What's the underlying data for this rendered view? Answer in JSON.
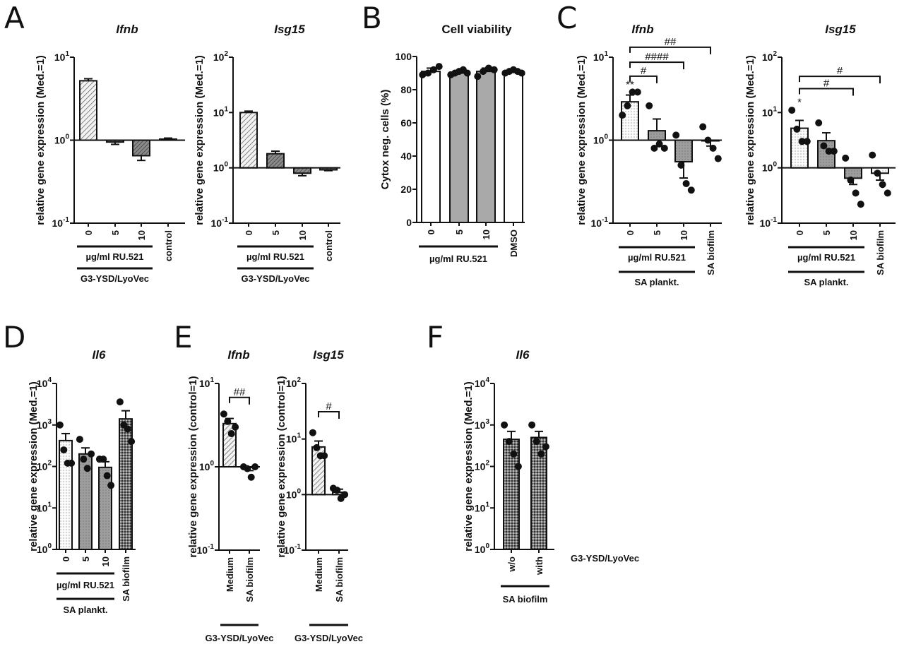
{
  "chart_data": [
    {
      "panel": "A",
      "type": "bar",
      "title": "Ifnb",
      "ylabel": "relative gene expression (Med.=1)",
      "yscale": "log",
      "ylim": [
        0.1,
        10
      ],
      "yticks": [
        {
          "value": 0.1,
          "b": "10",
          "e": "-1"
        },
        {
          "value": 1,
          "b": "10",
          "e": "0"
        },
        {
          "value": 10,
          "b": "10",
          "e": "1"
        }
      ],
      "bar_origin": 1,
      "categories": [
        "0",
        "5",
        "10",
        "control"
      ],
      "fills": [
        "hatch",
        "hatch-dark",
        "hatch-dark",
        "hatch-dark"
      ],
      "bars": [
        {
          "mean": 5.2,
          "sem": 0.3
        },
        {
          "mean": 0.95,
          "sem": 0.06
        },
        {
          "mean": 0.65,
          "sem": 0.08
        },
        {
          "mean": 1.03,
          "sem": 0.03
        }
      ],
      "groups": [
        {
          "from": 0,
          "to": 2,
          "text": "µg/ml RU.521",
          "level": 0
        },
        {
          "from": 0,
          "to": 2,
          "text": "G3-YSD/LyoVec",
          "level": 1
        }
      ],
      "brackets": [],
      "annotations": []
    },
    {
      "panel": "",
      "type": "bar",
      "title": "Isg15",
      "ylabel": "relative gene expression (Med.=1)",
      "yscale": "log",
      "ylim": [
        0.1,
        100
      ],
      "yticks": [
        {
          "value": 0.1,
          "b": "10",
          "e": "-1"
        },
        {
          "value": 1,
          "b": "10",
          "e": "0"
        },
        {
          "value": 10,
          "b": "10",
          "e": "1"
        },
        {
          "value": 100,
          "b": "10",
          "e": "2"
        }
      ],
      "bar_origin": 1,
      "categories": [
        "0",
        "5",
        "10",
        "control"
      ],
      "fills": [
        "hatch",
        "hatch-dark",
        "hatch-dark",
        "hatch-dark"
      ],
      "bars": [
        {
          "mean": 10,
          "sem": 0.6
        },
        {
          "mean": 1.8,
          "sem": 0.2
        },
        {
          "mean": 0.8,
          "sem": 0.08
        },
        {
          "mean": 0.92,
          "sem": 0.03
        }
      ],
      "groups": [
        {
          "from": 0,
          "to": 2,
          "text": "µg/ml RU.521",
          "level": 0
        },
        {
          "from": 0,
          "to": 2,
          "text": "G3-YSD/LyoVec",
          "level": 1
        }
      ],
      "brackets": [],
      "annotations": []
    },
    {
      "panel": "B",
      "type": "bar",
      "title": "Cell viability",
      "ylabel": "Cytox neg. cells (%)",
      "yscale": "linear",
      "ylim": [
        0,
        100
      ],
      "yticks": [
        {
          "value": 0,
          "b": "0"
        },
        {
          "value": 20,
          "b": "20"
        },
        {
          "value": 40,
          "b": "40"
        },
        {
          "value": 60,
          "b": "60"
        },
        {
          "value": 80,
          "b": "80"
        },
        {
          "value": 100,
          "b": "100"
        }
      ],
      "bar_origin": 0,
      "categories": [
        "0",
        "5",
        "10",
        "DMSO"
      ],
      "fills": [
        "white",
        "gray",
        "gray",
        "white"
      ],
      "bars": [
        {
          "mean": 91,
          "sem": 2,
          "points": [
            89,
            90,
            92,
            94
          ]
        },
        {
          "mean": 90,
          "sem": 1,
          "points": [
            89,
            90,
            91,
            92,
            90
          ]
        },
        {
          "mean": 91,
          "sem": 2,
          "points": [
            88,
            91,
            93,
            92
          ]
        },
        {
          "mean": 91,
          "sem": 1,
          "points": [
            90,
            91,
            92,
            91,
            90
          ]
        }
      ],
      "groups": [
        {
          "from": 0,
          "to": 2,
          "text": "µg/ml RU.521",
          "level": 0
        }
      ],
      "brackets": [],
      "annotations": []
    },
    {
      "panel": "C",
      "type": "bar",
      "title": "Ifnb",
      "ylabel": "relative gene expression (Med.=1)",
      "yscale": "log",
      "ylim": [
        0.1,
        10
      ],
      "yticks": [
        {
          "value": 0.1,
          "b": "10",
          "e": "-1"
        },
        {
          "value": 1,
          "b": "10",
          "e": "0"
        },
        {
          "value": 10,
          "b": "10",
          "e": "1"
        }
      ],
      "bar_origin": 1,
      "categories": [
        "0",
        "5",
        "10",
        "SA biofilm"
      ],
      "fills": [
        "dots",
        "gray-dots",
        "gray-dots",
        "white"
      ],
      "bars": [
        {
          "mean": 2.9,
          "sem": 0.6,
          "points": [
            2.0,
            2.6,
            3.8,
            3.8
          ]
        },
        {
          "mean": 1.3,
          "sem": 0.5,
          "points": [
            2.6,
            0.8,
            0.9,
            0.8
          ]
        },
        {
          "mean": 0.55,
          "sem": 0.2,
          "points": [
            1.15,
            0.5,
            0.3,
            0.25
          ]
        },
        {
          "mean": 1.0,
          "sem": 0.15,
          "points": [
            1.45,
            1.0,
            0.8,
            0.6
          ]
        }
      ],
      "groups": [
        {
          "from": 0,
          "to": 2,
          "text": "µg/ml RU.521",
          "level": 0
        },
        {
          "from": 0,
          "to": 2,
          "text": "SA plankt.",
          "level": 1
        }
      ],
      "brackets": [
        {
          "from": 0,
          "to": 1,
          "y": 5.9,
          "label": "#"
        },
        {
          "from": 0,
          "to": 2,
          "y": 8.7,
          "label": "####"
        },
        {
          "from": 0,
          "to": 3,
          "y": 13.2,
          "label": "##"
        }
      ],
      "annotations": [
        {
          "bar": 0,
          "y": 4.6,
          "label": "**"
        }
      ]
    },
    {
      "panel": "",
      "type": "bar",
      "title": "Isg15",
      "ylabel": "relative gene expression (Med.=1)",
      "yscale": "log",
      "ylim": [
        0.1,
        100
      ],
      "yticks": [
        {
          "value": 0.1,
          "b": "10",
          "e": "-1"
        },
        {
          "value": 1,
          "b": "10",
          "e": "0"
        },
        {
          "value": 10,
          "b": "10",
          "e": "1"
        },
        {
          "value": 100,
          "b": "10",
          "e": "2"
        }
      ],
      "bar_origin": 1,
      "categories": [
        "0",
        "5",
        "10",
        "SA biofilm"
      ],
      "fills": [
        "dots",
        "gray-dots",
        "gray-dots",
        "dots"
      ],
      "bars": [
        {
          "mean": 5.2,
          "sem": 2,
          "points": [
            11,
            5,
            3,
            3
          ]
        },
        {
          "mean": 3.1,
          "sem": 1.2,
          "points": [
            6.5,
            2.5,
            2,
            2
          ]
        },
        {
          "mean": 0.65,
          "sem": 0.15,
          "points": [
            1.5,
            0.6,
            0.35,
            0.22
          ]
        },
        {
          "mean": 0.8,
          "sem": 0.2,
          "points": [
            1.7,
            0.8,
            0.5,
            0.35
          ]
        }
      ],
      "groups": [
        {
          "from": 0,
          "to": 2,
          "text": "µg/ml RU.521",
          "level": 0
        },
        {
          "from": 0,
          "to": 2,
          "text": "SA plankt.",
          "level": 1
        }
      ],
      "brackets": [
        {
          "from": 0,
          "to": 2,
          "y": 27,
          "label": "#"
        },
        {
          "from": 0,
          "to": 3,
          "y": 45,
          "label": "#"
        }
      ],
      "annotations": [
        {
          "bar": 0,
          "y": 15,
          "label": "*"
        }
      ]
    },
    {
      "panel": "D",
      "type": "bar",
      "title": "Il6",
      "ylabel": "relative gene expression (Med.=1)",
      "yscale": "log",
      "ylim": [
        1,
        10000
      ],
      "yticks": [
        {
          "value": 1,
          "b": "10",
          "e": "0"
        },
        {
          "value": 10,
          "b": "10",
          "e": "1"
        },
        {
          "value": 100,
          "b": "10",
          "e": "2"
        },
        {
          "value": 1000,
          "b": "10",
          "e": "3"
        },
        {
          "value": 10000,
          "b": "10",
          "e": "4"
        }
      ],
      "bar_origin": 1,
      "categories": [
        "0",
        "5",
        "10",
        "SA biofilm"
      ],
      "fills": [
        "dots",
        "gray-dots",
        "gray-dots",
        "checker"
      ],
      "bars": [
        {
          "mean": 420,
          "sem": 200,
          "points": [
            1000,
            250,
            120,
            120
          ]
        },
        {
          "mean": 200,
          "sem": 80,
          "points": [
            450,
            150,
            90,
            200
          ]
        },
        {
          "mean": 95,
          "sem": 35,
          "points": [
            150,
            150,
            60,
            35
          ]
        },
        {
          "mean": 1400,
          "sem": 800,
          "points": [
            3600,
            1000,
            800,
            400
          ]
        }
      ],
      "groups": [
        {
          "from": 0,
          "to": 2,
          "text": "µg/ml RU.521",
          "level": 0
        },
        {
          "from": 0,
          "to": 2,
          "text": "SA plankt.",
          "level": 1
        }
      ],
      "brackets": [],
      "annotations": []
    },
    {
      "panel": "E",
      "type": "bar",
      "title": "Ifnb",
      "ylabel": "relative gene expression (control=1)",
      "yscale": "log",
      "ylim": [
        0.1,
        10
      ],
      "yticks": [
        {
          "value": 0.1,
          "b": "10",
          "e": "-1"
        },
        {
          "value": 1,
          "b": "10",
          "e": "0"
        },
        {
          "value": 10,
          "b": "10",
          "e": "1"
        }
      ],
      "bar_origin": 1,
      "categories": [
        "Medium",
        "SA biofilm"
      ],
      "fills": [
        "hatch",
        "hatch"
      ],
      "bars": [
        {
          "mean": 3.3,
          "sem": 0.5,
          "points": [
            4.3,
            3.5,
            2.5,
            3
          ]
        },
        {
          "mean": 1.0,
          "sem": 0.1,
          "points": [
            1,
            0.95,
            0.75,
            1
          ]
        }
      ],
      "groups": [
        {
          "from": 0,
          "to": 1,
          "text": "G3-YSD/LyoVec",
          "level": 0
        }
      ],
      "brackets": [
        {
          "from": 0,
          "to": 1,
          "y": 6.8,
          "label": "##"
        }
      ],
      "annotations": []
    },
    {
      "panel": "",
      "type": "bar",
      "title": "Isg15",
      "ylabel": "relative gene expression (control=1)",
      "yscale": "log",
      "ylim": [
        0.1,
        100
      ],
      "yticks": [
        {
          "value": 0.1,
          "b": "10",
          "e": "-1"
        },
        {
          "value": 1,
          "b": "10",
          "e": "0"
        },
        {
          "value": 10,
          "b": "10",
          "e": "1"
        },
        {
          "value": 100,
          "b": "10",
          "e": "2"
        }
      ],
      "bar_origin": 1,
      "categories": [
        "Medium",
        "SA biofilm"
      ],
      "fills": [
        "hatch",
        "hatch"
      ],
      "bars": [
        {
          "mean": 7.2,
          "sem": 2,
          "points": [
            13,
            7,
            5,
            5
          ]
        },
        {
          "mean": 1.1,
          "sem": 0.15,
          "points": [
            1.3,
            1.2,
            0.85,
            1.0
          ]
        }
      ],
      "groups": [
        {
          "from": 0,
          "to": 1,
          "text": "G3-YSD/LyoVec",
          "level": 0
        }
      ],
      "brackets": [
        {
          "from": 0,
          "to": 1,
          "y": 31,
          "label": "#"
        }
      ],
      "annotations": []
    },
    {
      "panel": "F",
      "type": "bar",
      "title": "Il6",
      "ylabel": "relative gene expression (Med.=1)",
      "yscale": "log",
      "ylim": [
        1,
        10000
      ],
      "yticks": [
        {
          "value": 1,
          "b": "10",
          "e": "0"
        },
        {
          "value": 10,
          "b": "10",
          "e": "1"
        },
        {
          "value": 100,
          "b": "10",
          "e": "2"
        },
        {
          "value": 1000,
          "b": "10",
          "e": "3"
        },
        {
          "value": 10000,
          "b": "10",
          "e": "4"
        }
      ],
      "bar_origin": 1,
      "categories": [
        "w/o",
        "with"
      ],
      "fills": [
        "checker",
        "checker"
      ],
      "row_label": "G3-YSD/LyoVec",
      "bars": [
        {
          "mean": 450,
          "sem": 250,
          "points": [
            1000,
            400,
            200,
            100
          ]
        },
        {
          "mean": 500,
          "sem": 200,
          "points": [
            1000,
            400,
            200,
            300
          ]
        }
      ],
      "groups": [
        {
          "from": 0,
          "to": 1,
          "text": "SA biofilm",
          "level": 0
        }
      ],
      "brackets": [],
      "annotations": []
    }
  ]
}
